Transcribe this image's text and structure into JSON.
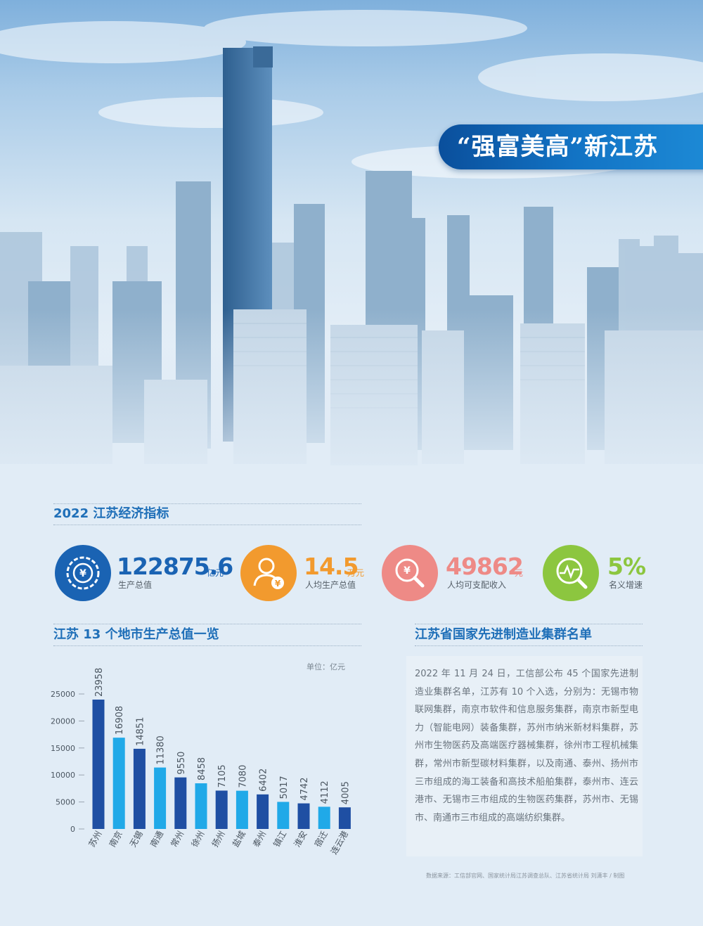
{
  "header": {
    "title": "“强富美高”新江苏"
  },
  "indicators": {
    "section_title": "2022 江苏经济指标",
    "items": [
      {
        "value": "122875.6",
        "unit": "亿元",
        "label": "生产总值",
        "icon": "gear-yuan-icon",
        "color": "#1a63b3"
      },
      {
        "value": "14.5",
        "unit": "万元",
        "label": "人均生产总值",
        "icon": "person-yuan-icon",
        "color": "#f29a2e"
      },
      {
        "value": "49862",
        "unit": "元",
        "label": "人均可支配收入",
        "icon": "magnifier-yuan-icon",
        "color": "#ee8a86"
      },
      {
        "value": "5%",
        "unit": "",
        "label": "名义增速",
        "icon": "trend-magnifier-icon",
        "color": "#8cc63f"
      }
    ]
  },
  "chart_section": {
    "title": "江苏 13 个地市生产总值一览",
    "unit_label": "单位：亿元"
  },
  "chart_data": {
    "type": "bar",
    "categories": [
      "苏州",
      "南京",
      "无锡",
      "南通",
      "常州",
      "徐州",
      "扬州",
      "盐城",
      "泰州",
      "镇江",
      "淮安",
      "宿迁",
      "连云港"
    ],
    "values": [
      23958,
      16908,
      14851,
      11380,
      9550,
      8458,
      7105,
      7080,
      6402,
      5017,
      4742,
      4112,
      4005
    ],
    "colors": [
      "#1f4fa3",
      "#20a9e8",
      "#1f4fa3",
      "#20a9e8",
      "#1f4fa3",
      "#20a9e8",
      "#1f4fa3",
      "#20a9e8",
      "#1f4fa3",
      "#20a9e8",
      "#1f4fa3",
      "#20a9e8",
      "#1f4fa3"
    ],
    "yticks": [
      0,
      5000,
      10000,
      15000,
      20000,
      25000
    ],
    "ylim": [
      0,
      25000
    ]
  },
  "clusters": {
    "title": "江苏省国家先进制造业集群名单",
    "text": "2022 年 11 月 24 日，工信部公布 45 个国家先进制造业集群名单，江苏有 10 个入选，分别为：无锡市物联网集群，南京市软件和信息服务集群，南京市新型电力（智能电网）装备集群，苏州市纳米新材料集群，苏州市生物医药及高端医疗器械集群，徐州市工程机械集群，常州市新型碳材料集群，以及南通、泰州、扬州市三市组成的海工装备和高技术船舶集群，泰州市、连云港市、无锡市三市组成的生物医药集群，苏州市、无锡市、南通市三市组成的高端纺织集群。"
  },
  "footer": {
    "source": "数据来源：工信部官网、国家统计局江苏调查总队、江苏省统计局 刘潇丰 / 制图"
  }
}
